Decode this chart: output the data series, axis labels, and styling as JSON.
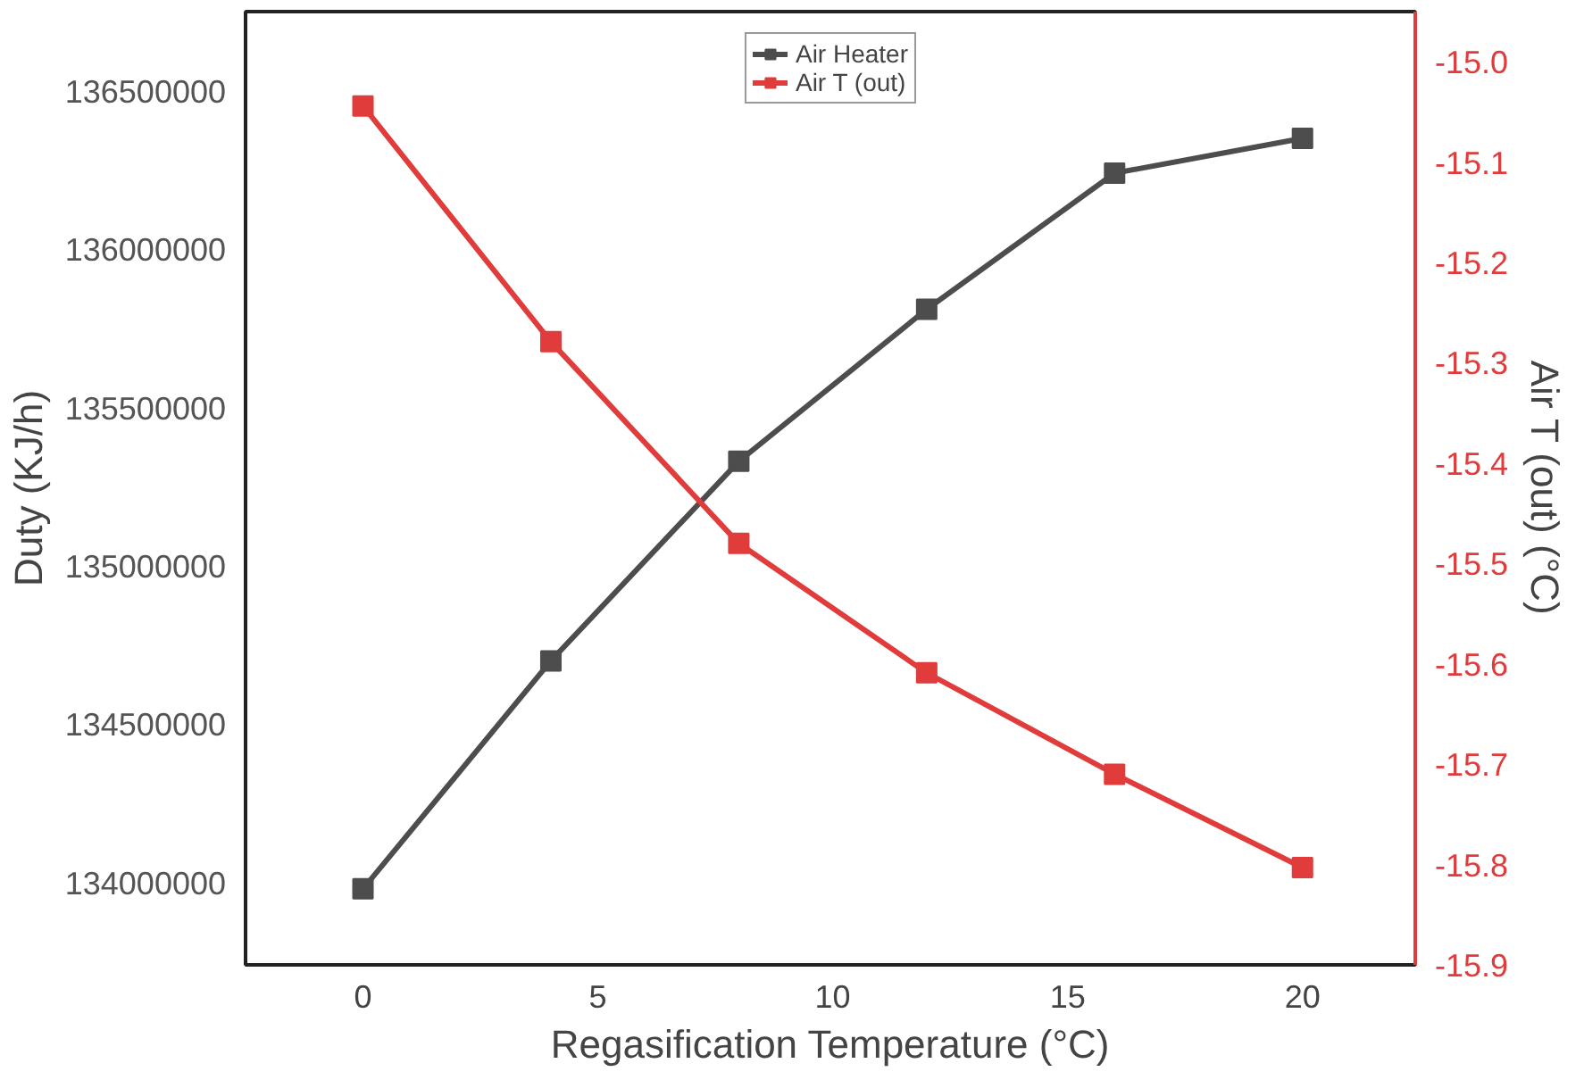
{
  "chart_data": {
    "type": "line",
    "xlabel": "Regasification Temperature (°C)",
    "ylabel": "Duty (KJ/h)",
    "y2label": "Air T (out) (°C)",
    "x": [
      0,
      4,
      8,
      12,
      16,
      20
    ],
    "series": [
      {
        "name": "Air Heater",
        "color": "#4d4d4d",
        "values": [
          133980000,
          134700000,
          135330000,
          135810000,
          136240000,
          136350000
        ]
      },
      {
        "name": "Air T (out)",
        "color": "#e03c3c",
        "axis": "y2",
        "values": [
          -15.044,
          -15.279,
          -15.48,
          -15.609,
          -15.71,
          -15.803
        ]
      }
    ],
    "xlim": [
      -2.5,
      22.4
    ],
    "xticks": [
      0,
      5,
      10,
      15,
      20
    ],
    "ylim": [
      133740000,
      136750000
    ],
    "yticks": [
      134000000,
      134500000,
      135000000,
      135500000,
      136000000,
      136500000
    ],
    "y2lim": [
      -15.9,
      -14.95
    ],
    "y2ticks": [
      {
        "value": -15.9,
        "label": "-15.9"
      },
      {
        "value": -15.8,
        "label": "-15.8"
      },
      {
        "value": -15.7,
        "label": "-15.7"
      },
      {
        "value": -15.6,
        "label": "-15.6"
      },
      {
        "value": -15.5,
        "label": "-15.5"
      },
      {
        "value": -15.4,
        "label": "-15.4"
      },
      {
        "value": -15.3,
        "label": "-15.3"
      },
      {
        "value": -15.2,
        "label": "-15.2"
      },
      {
        "value": -15.1,
        "label": "-15.1"
      },
      {
        "value": -15.0,
        "label": "-15.0"
      }
    ],
    "grid": false,
    "legend": "top",
    "marker": "square",
    "line_style": "solid"
  }
}
